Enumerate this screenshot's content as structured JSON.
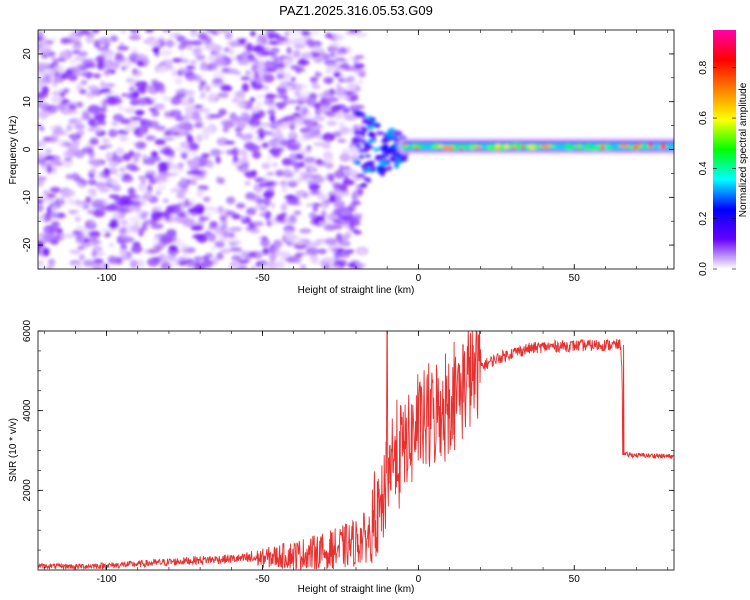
{
  "title": "PAZ1.2025.316.05.53.G09",
  "chart_data": [
    {
      "type": "heatmap",
      "title": "PAZ1.2025.316.05.53.G09",
      "xlabel": "Height of straight line (km)",
      "ylabel": "Frequency (Hz)",
      "xlim": [
        -122,
        82
      ],
      "ylim": [
        -25,
        25
      ],
      "xticks": [
        -100,
        -50,
        0,
        50
      ],
      "yticks": [
        -20,
        -10,
        0,
        10,
        20
      ],
      "description_values": {
        "noise_region_x": [
          -122,
          -20
        ],
        "transition_x": [
          -20,
          -5
        ],
        "signal_region_x": [
          -5,
          82
        ],
        "signal_frequency_hz": 0.5
      },
      "colorbar": {
        "label": "Normalized spectral amplitude",
        "range": [
          0.0,
          0.95
        ],
        "ticks": [
          0.0,
          0.2,
          0.4,
          0.6,
          0.8
        ],
        "tick_labels": [
          "0.0",
          "0.2",
          "0.4",
          "0.6",
          "0.8"
        ],
        "colormap": [
          "#ffffff",
          "#6600ff",
          "#0000ff",
          "#00ffff",
          "#00ff00",
          "#ffff00",
          "#ff8000",
          "#ff0000",
          "#ff00aa"
        ]
      }
    },
    {
      "type": "line",
      "xlabel": "Height of straight line (km)",
      "ylabel": "SNR (10 * v/v)",
      "xlim": [
        -122,
        82
      ],
      "ylim": [
        0,
        6000
      ],
      "xticks": [
        -100,
        -50,
        0,
        50
      ],
      "yticks": [
        2000,
        4000,
        6000
      ],
      "series": [
        {
          "name": "SNR",
          "color": "#e8302f",
          "x": [
            -122,
            -110,
            -100,
            -90,
            -80,
            -70,
            -60,
            -50,
            -40,
            -30,
            -25,
            -20,
            -15,
            -12,
            -10,
            -8,
            -5,
            -3,
            0,
            5,
            10,
            15,
            20,
            25,
            30,
            35,
            40,
            45,
            50,
            55,
            60,
            65,
            66,
            70,
            75,
            82
          ],
          "y": [
            100,
            90,
            110,
            150,
            200,
            250,
            280,
            300,
            380,
            450,
            550,
            700,
            900,
            1500,
            2500,
            2800,
            3000,
            3300,
            3600,
            3900,
            4300,
            4700,
            5100,
            5300,
            5450,
            5550,
            5600,
            5620,
            5630,
            5640,
            5650,
            5650,
            2900,
            2880,
            2870,
            2850
          ]
        }
      ]
    }
  ]
}
